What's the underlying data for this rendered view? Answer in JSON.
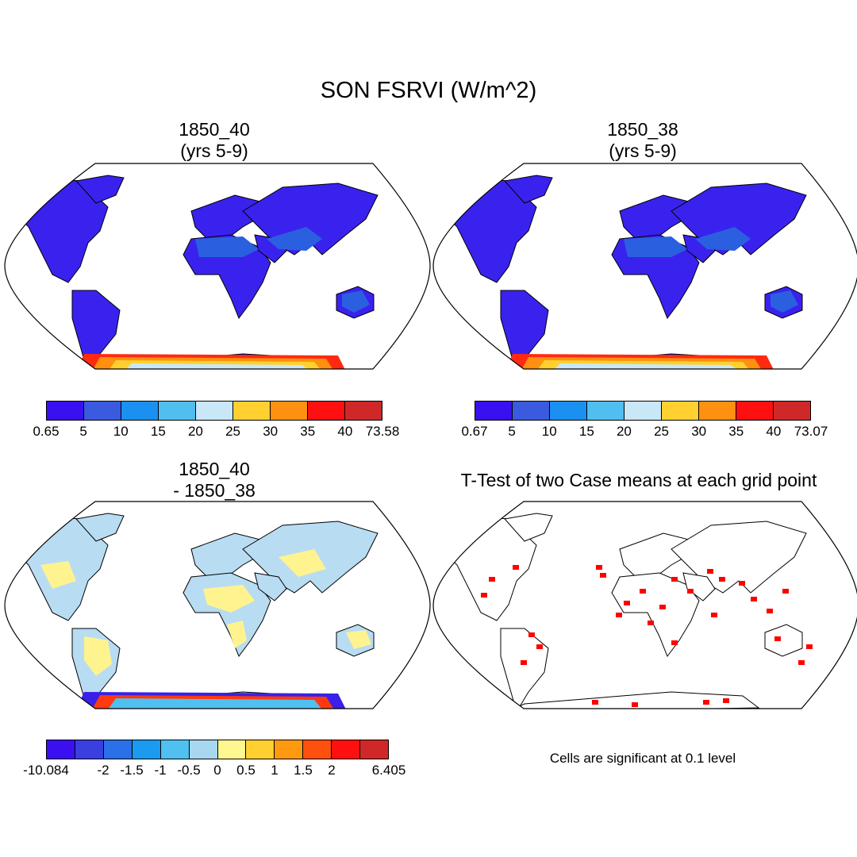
{
  "title": "SON FSRVI (W/m^2)",
  "panels": [
    {
      "id": "case1",
      "title_line1": "1850_40",
      "title_line2": "(yrs 5-9)"
    },
    {
      "id": "case2",
      "title_line1": "1850_38",
      "title_line2": "(yrs 5-9)"
    },
    {
      "id": "diff",
      "title_line1": "1850_40",
      "title_line2": "- 1850_38"
    },
    {
      "id": "ttest",
      "title_line1": "T-Test of two Case means at each grid point",
      "title_line2": ""
    }
  ],
  "colorbars": {
    "case1": {
      "colors": [
        "#3a10f0",
        "#3a5ae0",
        "#1a90f0",
        "#50bff0",
        "#c8e8f8",
        "#ffd030",
        "#ff9010",
        "#ff1010",
        "#d02828"
      ],
      "labels": [
        "0.65",
        "5",
        "10",
        "15",
        "20",
        "25",
        "30",
        "35",
        "40",
        "73.58"
      ]
    },
    "case2": {
      "colors": [
        "#3a10f0",
        "#3a5ae0",
        "#1a90f0",
        "#50bff0",
        "#c8e8f8",
        "#ffd030",
        "#ff9010",
        "#ff1010",
        "#d02828"
      ],
      "labels": [
        "0.67",
        "5",
        "10",
        "15",
        "20",
        "25",
        "30",
        "35",
        "40",
        "73.07"
      ]
    },
    "diff": {
      "colors": [
        "#3a10f0",
        "#3a40e0",
        "#2a70e8",
        "#1a9af0",
        "#50c0f0",
        "#a8d8f0",
        "#fff790",
        "#ffd030",
        "#ff9a10",
        "#ff5010",
        "#ff1010",
        "#d02828"
      ],
      "labels": [
        "-10.084",
        "",
        "-2",
        "-1.5",
        "-1",
        "-0.5",
        "0",
        "0.5",
        "1",
        "1.5",
        "2",
        "",
        "6.405"
      ]
    }
  },
  "map_fills": {
    "case1": {
      "land": "#3a22ee",
      "dry": "#2a60e0",
      "antarctica": [
        "#ff2a10",
        "#ff9010",
        "#ffd030",
        "#c8e8f8"
      ]
    },
    "case2": {
      "land": "#3a22ee",
      "dry": "#2a60e0",
      "antarctica": [
        "#ff2a10",
        "#ff9010",
        "#ffd030",
        "#c8e8f8"
      ]
    },
    "diff": {
      "land": "#b8dcf2",
      "warm": "#fff390",
      "antarctica": [
        "#3a20e8",
        "#ff3a10",
        "#50c0f0"
      ]
    },
    "ttest": {
      "land": "#ffffff",
      "signif": "#ff0000"
    }
  },
  "note": "Cells are significant at 0.1 level"
}
